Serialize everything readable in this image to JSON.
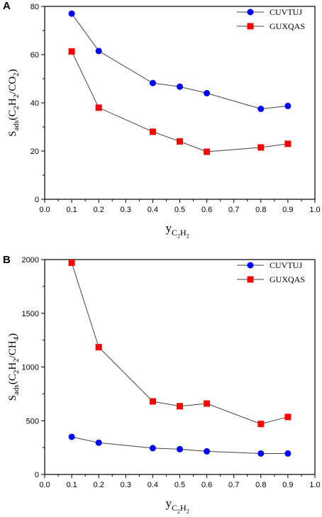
{
  "chart_data": [
    {
      "panel": "A",
      "type": "line",
      "xlabel_main": "y",
      "xlabel_sub": "C2H2",
      "ylabel": "Sads(C2H2/CO2)",
      "xlim": [
        0.0,
        1.0
      ],
      "ylim": [
        0,
        80
      ],
      "xticks": [
        "0.0",
        "0.1",
        "0.2",
        "0.3",
        "0.4",
        "0.5",
        "0.6",
        "0.7",
        "0.8",
        "0.9",
        "1.0"
      ],
      "yticks": [
        "0",
        "20",
        "40",
        "60",
        "80"
      ],
      "legend_position": "top-right",
      "x": [
        0.1,
        0.2,
        0.4,
        0.5,
        0.6,
        0.8,
        0.9
      ],
      "series": [
        {
          "name": "CUVTUJ",
          "color": "#0000ff",
          "marker": "circle",
          "values": [
            77.0,
            61.5,
            48.2,
            46.7,
            44.0,
            37.5,
            38.7
          ]
        },
        {
          "name": "GUXQAS",
          "color": "#ff0000",
          "marker": "square",
          "values": [
            61.3,
            38.0,
            28.0,
            24.0,
            19.7,
            21.5,
            23.0
          ]
        }
      ]
    },
    {
      "panel": "B",
      "type": "line",
      "xlabel_main": "y",
      "xlabel_sub": "C2H2",
      "ylabel": "Sads(C2H2/CH4)",
      "xlim": [
        0.0,
        1.0
      ],
      "ylim": [
        0,
        2000
      ],
      "xticks": [
        "0.0",
        "0.1",
        "0.2",
        "0.3",
        "0.4",
        "0.5",
        "0.6",
        "0.7",
        "0.8",
        "0.9",
        "1.0"
      ],
      "yticks": [
        "0",
        "500",
        "1000",
        "1500",
        "2000"
      ],
      "legend_position": "top-right",
      "x": [
        0.1,
        0.2,
        0.4,
        0.5,
        0.6,
        0.8,
        0.9
      ],
      "series": [
        {
          "name": "CUVTUJ",
          "color": "#0000ff",
          "marker": "circle",
          "values": [
            350,
            295,
            245,
            235,
            215,
            195,
            195
          ]
        },
        {
          "name": "GUXQAS",
          "color": "#ff0000",
          "marker": "square",
          "values": [
            1970,
            1185,
            680,
            635,
            660,
            470,
            535
          ]
        }
      ]
    }
  ]
}
